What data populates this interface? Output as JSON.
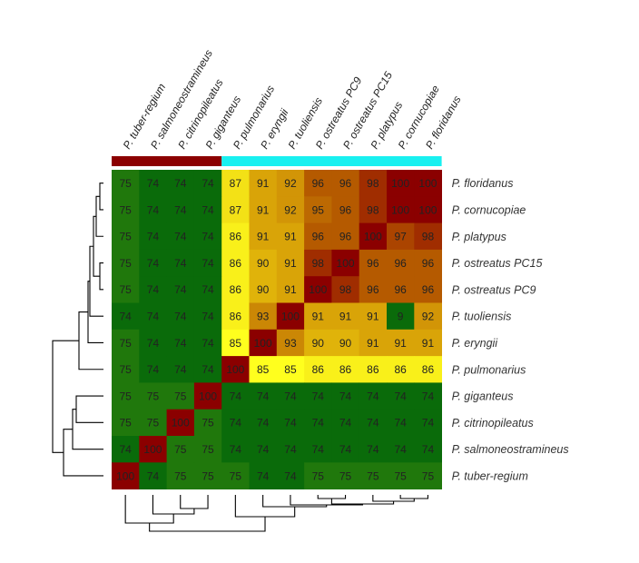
{
  "chart_data": {
    "type": "heatmap",
    "title": "",
    "columns": [
      "P. tuber-regium",
      "P. salmoneostramineus",
      "P. citrinopileatus",
      "P. giganteus",
      "P. pulmonarius",
      "P. eryngii",
      "P. tuoliensis",
      "P. ostreatus PC9",
      "P. ostreatus PC15",
      "P. platypus",
      "P. cornucopiae",
      "P. floridanus"
    ],
    "rows": [
      "P. floridanus",
      "P. cornucopiae",
      "P. platypus",
      "P. ostreatus PC15",
      "P. ostreatus PC9",
      "P. tuoliensis",
      "P. eryngii",
      "P. pulmonarius",
      "P. giganteus",
      "P. citrinopileatus",
      "P. salmoneostramineus",
      "P. tuber-regium"
    ],
    "values": [
      [
        75,
        74,
        74,
        74,
        87,
        91,
        92,
        96,
        96,
        98,
        100,
        100
      ],
      [
        75,
        74,
        74,
        74,
        87,
        91,
        92,
        95,
        96,
        98,
        100,
        100
      ],
      [
        75,
        74,
        74,
        74,
        86,
        91,
        91,
        96,
        96,
        100,
        97,
        98
      ],
      [
        75,
        74,
        74,
        74,
        86,
        90,
        91,
        98,
        100,
        96,
        96,
        96
      ],
      [
        75,
        74,
        74,
        74,
        86,
        90,
        91,
        100,
        98,
        96,
        96,
        96
      ],
      [
        74,
        74,
        74,
        74,
        86,
        93,
        100,
        91,
        91,
        91,
        9,
        92
      ],
      [
        75,
        74,
        74,
        74,
        85,
        100,
        93,
        90,
        90,
        91,
        91,
        91
      ],
      [
        75,
        74,
        74,
        74,
        100,
        85,
        85,
        86,
        86,
        86,
        86,
        86
      ],
      [
        75,
        75,
        75,
        100,
        74,
        74,
        74,
        74,
        74,
        74,
        74,
        74
      ],
      [
        75,
        75,
        100,
        75,
        74,
        74,
        74,
        74,
        74,
        74,
        74,
        74
      ],
      [
        74,
        100,
        75,
        75,
        74,
        74,
        74,
        74,
        74,
        74,
        74,
        74
      ],
      [
        100,
        74,
        75,
        75,
        75,
        74,
        74,
        75,
        75,
        75,
        75,
        75
      ]
    ],
    "column_groups": [
      {
        "count": 4,
        "color": "#8b0000"
      },
      {
        "count": 8,
        "color": "#19f0f0"
      }
    ],
    "color_scale": {
      "stops": [
        {
          "value": 74,
          "color": "#0a6b0a"
        },
        {
          "value": 85,
          "color": "#ffff1e"
        },
        {
          "value": 90,
          "color": "#e0b30a"
        },
        {
          "value": 96,
          "color": "#b55a00"
        },
        {
          "value": 100,
          "color": "#8b0000"
        }
      ]
    },
    "legend": "none"
  },
  "colors": {
    "background": "#ffffff",
    "dendrogram": "#000000",
    "cell_text": "#222222",
    "label_text": "#333333"
  }
}
